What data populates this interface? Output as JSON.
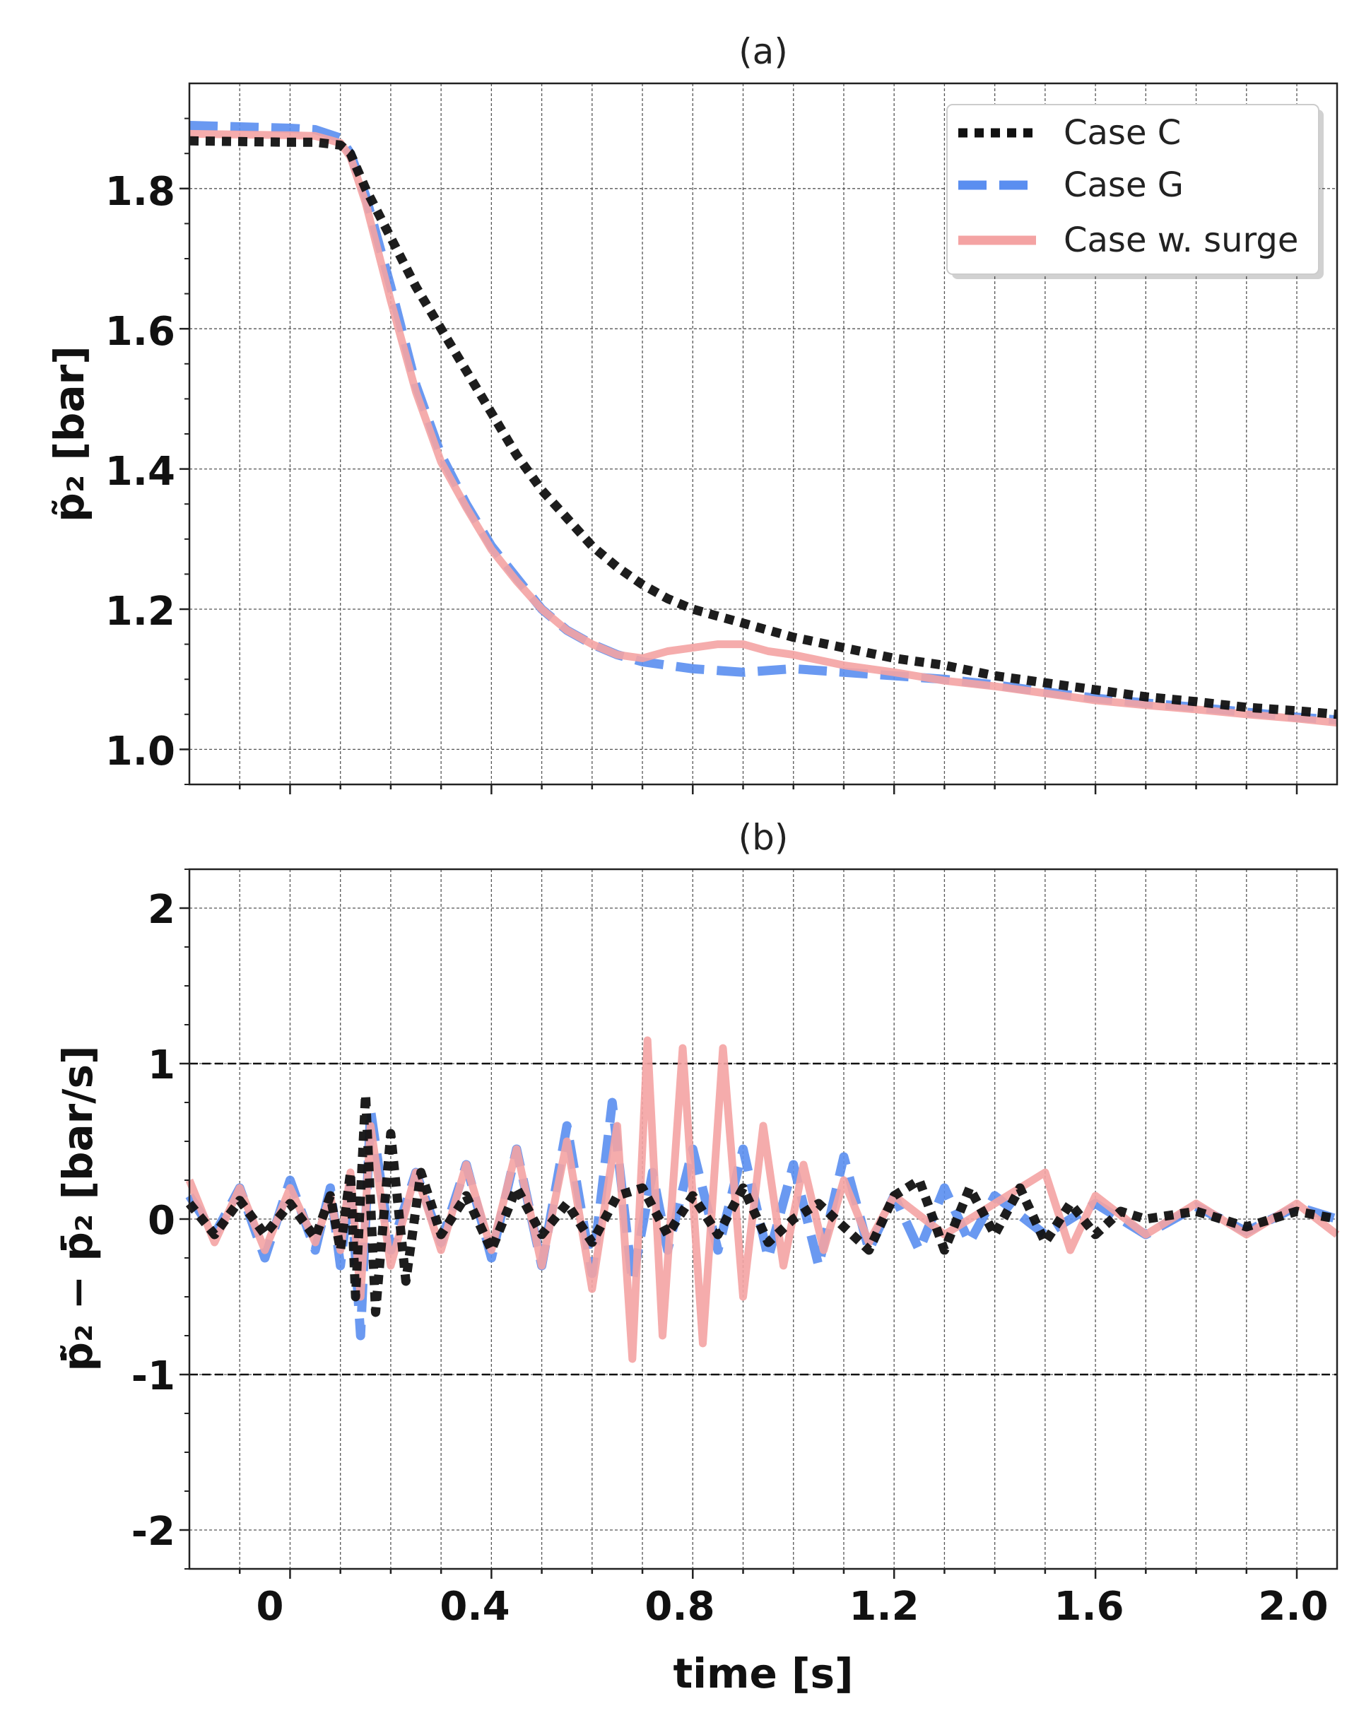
{
  "chart_data": [
    {
      "type": "line",
      "title": "(a)",
      "xlabel": "",
      "ylabel": "p̃₂ [bar]",
      "xlim": [
        -0.2,
        2.08
      ],
      "ylim": [
        0.95,
        1.95
      ],
      "xticks": [
        "0",
        "0.4",
        "0.8",
        "1.2",
        "1.6",
        "2.0"
      ],
      "yticks": [
        "1.0",
        "1.2",
        "1.4",
        "1.6",
        "1.8"
      ],
      "grid": true,
      "legend_position": "top-right",
      "series": [
        {
          "name": "Case C",
          "color": "#111111",
          "style": "dotted",
          "points": [
            [
              -0.2,
              1.868
            ],
            [
              -0.1,
              1.867
            ],
            [
              0.0,
              1.866
            ],
            [
              0.05,
              1.866
            ],
            [
              0.1,
              1.862
            ],
            [
              0.12,
              1.85
            ],
            [
              0.15,
              1.8
            ],
            [
              0.2,
              1.73
            ],
            [
              0.25,
              1.66
            ],
            [
              0.3,
              1.6
            ],
            [
              0.35,
              1.54
            ],
            [
              0.4,
              1.48
            ],
            [
              0.45,
              1.42
            ],
            [
              0.5,
              1.37
            ],
            [
              0.55,
              1.33
            ],
            [
              0.6,
              1.29
            ],
            [
              0.65,
              1.26
            ],
            [
              0.7,
              1.235
            ],
            [
              0.75,
              1.215
            ],
            [
              0.8,
              1.2
            ],
            [
              0.9,
              1.18
            ],
            [
              1.0,
              1.16
            ],
            [
              1.1,
              1.145
            ],
            [
              1.2,
              1.13
            ],
            [
              1.3,
              1.12
            ],
            [
              1.4,
              1.105
            ],
            [
              1.5,
              1.095
            ],
            [
              1.6,
              1.085
            ],
            [
              1.7,
              1.075
            ],
            [
              1.8,
              1.068
            ],
            [
              1.9,
              1.06
            ],
            [
              2.0,
              1.055
            ],
            [
              2.08,
              1.05
            ]
          ]
        },
        {
          "name": "Case G",
          "color": "#5a8ef0",
          "style": "dashed",
          "points": [
            [
              -0.2,
              1.89
            ],
            [
              -0.1,
              1.888
            ],
            [
              0.0,
              1.886
            ],
            [
              0.05,
              1.884
            ],
            [
              0.1,
              1.872
            ],
            [
              0.12,
              1.85
            ],
            [
              0.15,
              1.79
            ],
            [
              0.2,
              1.66
            ],
            [
              0.25,
              1.52
            ],
            [
              0.3,
              1.42
            ],
            [
              0.35,
              1.35
            ],
            [
              0.4,
              1.29
            ],
            [
              0.45,
              1.245
            ],
            [
              0.5,
              1.2
            ],
            [
              0.55,
              1.17
            ],
            [
              0.6,
              1.15
            ],
            [
              0.65,
              1.135
            ],
            [
              0.7,
              1.125
            ],
            [
              0.75,
              1.12
            ],
            [
              0.8,
              1.115
            ],
            [
              0.9,
              1.11
            ],
            [
              1.0,
              1.115
            ],
            [
              1.1,
              1.11
            ],
            [
              1.2,
              1.105
            ],
            [
              1.3,
              1.1
            ],
            [
              1.4,
              1.092
            ],
            [
              1.5,
              1.082
            ],
            [
              1.6,
              1.073
            ],
            [
              1.7,
              1.066
            ],
            [
              1.8,
              1.06
            ],
            [
              1.9,
              1.053
            ],
            [
              2.0,
              1.046
            ],
            [
              2.08,
              1.042
            ]
          ]
        },
        {
          "name": "Case w. surge",
          "color": "#f4a3a3",
          "style": "solid",
          "points": [
            [
              -0.2,
              1.878
            ],
            [
              -0.1,
              1.877
            ],
            [
              0.0,
              1.876
            ],
            [
              0.05,
              1.875
            ],
            [
              0.1,
              1.865
            ],
            [
              0.12,
              1.845
            ],
            [
              0.15,
              1.78
            ],
            [
              0.2,
              1.64
            ],
            [
              0.25,
              1.51
            ],
            [
              0.3,
              1.41
            ],
            [
              0.35,
              1.345
            ],
            [
              0.4,
              1.285
            ],
            [
              0.45,
              1.24
            ],
            [
              0.5,
              1.2
            ],
            [
              0.55,
              1.17
            ],
            [
              0.6,
              1.15
            ],
            [
              0.65,
              1.135
            ],
            [
              0.7,
              1.13
            ],
            [
              0.75,
              1.14
            ],
            [
              0.8,
              1.145
            ],
            [
              0.85,
              1.15
            ],
            [
              0.9,
              1.15
            ],
            [
              0.95,
              1.14
            ],
            [
              1.0,
              1.135
            ],
            [
              1.1,
              1.12
            ],
            [
              1.2,
              1.11
            ],
            [
              1.3,
              1.098
            ],
            [
              1.4,
              1.09
            ],
            [
              1.5,
              1.08
            ],
            [
              1.6,
              1.07
            ],
            [
              1.7,
              1.063
            ],
            [
              1.8,
              1.057
            ],
            [
              1.9,
              1.05
            ],
            [
              2.0,
              1.044
            ],
            [
              2.08,
              1.038
            ]
          ]
        }
      ]
    },
    {
      "type": "line",
      "title": "(b)",
      "xlabel": "time [s]",
      "ylabel": "ṗ̃₂ − ṗ̄₂ [bar/s]",
      "xlim": [
        -0.2,
        2.08
      ],
      "ylim": [
        -2.25,
        2.25
      ],
      "xticks": [
        "0",
        "0.4",
        "0.8",
        "1.2",
        "1.6",
        "2.0"
      ],
      "yticks": [
        "-2",
        "-1",
        "0",
        "1",
        "2"
      ],
      "reference_lines": [
        1,
        -1
      ],
      "grid": true,
      "series": [
        {
          "name": "Case C",
          "color": "#111111",
          "style": "dotted",
          "points": [
            [
              -0.2,
              0.1
            ],
            [
              -0.15,
              -0.1
            ],
            [
              -0.1,
              0.12
            ],
            [
              -0.05,
              -0.1
            ],
            [
              0.0,
              0.1
            ],
            [
              0.05,
              -0.12
            ],
            [
              0.08,
              0.15
            ],
            [
              0.1,
              -0.2
            ],
            [
              0.12,
              0.3
            ],
            [
              0.13,
              -0.5
            ],
            [
              0.15,
              0.8
            ],
            [
              0.17,
              -0.6
            ],
            [
              0.2,
              0.55
            ],
            [
              0.23,
              -0.4
            ],
            [
              0.26,
              0.3
            ],
            [
              0.3,
              -0.1
            ],
            [
              0.35,
              0.15
            ],
            [
              0.4,
              -0.2
            ],
            [
              0.45,
              0.2
            ],
            [
              0.5,
              -0.1
            ],
            [
              0.55,
              0.1
            ],
            [
              0.6,
              -0.15
            ],
            [
              0.65,
              0.15
            ],
            [
              0.7,
              0.2
            ],
            [
              0.75,
              -0.1
            ],
            [
              0.8,
              0.15
            ],
            [
              0.85,
              -0.1
            ],
            [
              0.9,
              0.2
            ],
            [
              0.95,
              -0.15
            ],
            [
              1.0,
              0.0
            ],
            [
              1.05,
              0.1
            ],
            [
              1.1,
              -0.05
            ],
            [
              1.15,
              -0.2
            ],
            [
              1.2,
              0.15
            ],
            [
              1.25,
              0.25
            ],
            [
              1.3,
              -0.2
            ],
            [
              1.35,
              0.2
            ],
            [
              1.4,
              -0.1
            ],
            [
              1.45,
              0.2
            ],
            [
              1.5,
              -0.15
            ],
            [
              1.55,
              0.1
            ],
            [
              1.6,
              -0.1
            ],
            [
              1.65,
              0.05
            ],
            [
              1.7,
              0.0
            ],
            [
              1.8,
              0.05
            ],
            [
              1.9,
              -0.05
            ],
            [
              2.0,
              0.05
            ],
            [
              2.08,
              0.0
            ]
          ]
        },
        {
          "name": "Case G",
          "color": "#5a8ef0",
          "style": "dashed",
          "points": [
            [
              -0.2,
              0.15
            ],
            [
              -0.15,
              -0.1
            ],
            [
              -0.1,
              0.2
            ],
            [
              -0.05,
              -0.25
            ],
            [
              0.0,
              0.25
            ],
            [
              0.05,
              -0.2
            ],
            [
              0.08,
              0.2
            ],
            [
              0.1,
              -0.3
            ],
            [
              0.12,
              0.25
            ],
            [
              0.14,
              -0.75
            ],
            [
              0.16,
              0.7
            ],
            [
              0.2,
              -0.2
            ],
            [
              0.25,
              0.3
            ],
            [
              0.3,
              -0.15
            ],
            [
              0.35,
              0.35
            ],
            [
              0.4,
              -0.25
            ],
            [
              0.45,
              0.45
            ],
            [
              0.5,
              -0.3
            ],
            [
              0.55,
              0.6
            ],
            [
              0.6,
              -0.35
            ],
            [
              0.64,
              0.75
            ],
            [
              0.68,
              -0.4
            ],
            [
              0.72,
              0.3
            ],
            [
              0.75,
              -0.2
            ],
            [
              0.8,
              0.45
            ],
            [
              0.85,
              -0.2
            ],
            [
              0.9,
              0.45
            ],
            [
              0.95,
              -0.25
            ],
            [
              1.0,
              0.35
            ],
            [
              1.05,
              -0.3
            ],
            [
              1.1,
              0.4
            ],
            [
              1.15,
              -0.2
            ],
            [
              1.2,
              0.15
            ],
            [
              1.25,
              -0.2
            ],
            [
              1.3,
              0.2
            ],
            [
              1.35,
              -0.15
            ],
            [
              1.4,
              0.15
            ],
            [
              1.5,
              -0.1
            ],
            [
              1.6,
              0.1
            ],
            [
              1.7,
              -0.1
            ],
            [
              1.8,
              0.08
            ],
            [
              1.9,
              -0.08
            ],
            [
              2.0,
              0.08
            ],
            [
              2.08,
              0.0
            ]
          ]
        },
        {
          "name": "Case w. surge",
          "color": "#f4a3a3",
          "style": "solid",
          "points": [
            [
              -0.2,
              0.25
            ],
            [
              -0.15,
              -0.15
            ],
            [
              -0.1,
              0.2
            ],
            [
              -0.05,
              -0.2
            ],
            [
              0.0,
              0.2
            ],
            [
              0.05,
              -0.15
            ],
            [
              0.08,
              0.15
            ],
            [
              0.1,
              -0.2
            ],
            [
              0.12,
              0.3
            ],
            [
              0.14,
              -0.5
            ],
            [
              0.16,
              0.6
            ],
            [
              0.2,
              -0.3
            ],
            [
              0.25,
              0.3
            ],
            [
              0.3,
              -0.2
            ],
            [
              0.35,
              0.35
            ],
            [
              0.4,
              -0.2
            ],
            [
              0.45,
              0.45
            ],
            [
              0.5,
              -0.3
            ],
            [
              0.55,
              0.5
            ],
            [
              0.6,
              -0.45
            ],
            [
              0.65,
              0.6
            ],
            [
              0.68,
              -0.9
            ],
            [
              0.71,
              1.15
            ],
            [
              0.74,
              -0.75
            ],
            [
              0.78,
              1.1
            ],
            [
              0.82,
              -0.8
            ],
            [
              0.86,
              1.1
            ],
            [
              0.9,
              -0.5
            ],
            [
              0.94,
              0.6
            ],
            [
              0.98,
              -0.3
            ],
            [
              1.02,
              0.35
            ],
            [
              1.06,
              -0.2
            ],
            [
              1.1,
              0.25
            ],
            [
              1.15,
              -0.15
            ],
            [
              1.2,
              0.15
            ],
            [
              1.3,
              -0.1
            ],
            [
              1.4,
              0.1
            ],
            [
              1.5,
              0.3
            ],
            [
              1.55,
              -0.2
            ],
            [
              1.6,
              0.15
            ],
            [
              1.7,
              -0.1
            ],
            [
              1.8,
              0.1
            ],
            [
              1.9,
              -0.1
            ],
            [
              2.0,
              0.1
            ],
            [
              2.08,
              -0.1
            ]
          ]
        }
      ]
    }
  ]
}
